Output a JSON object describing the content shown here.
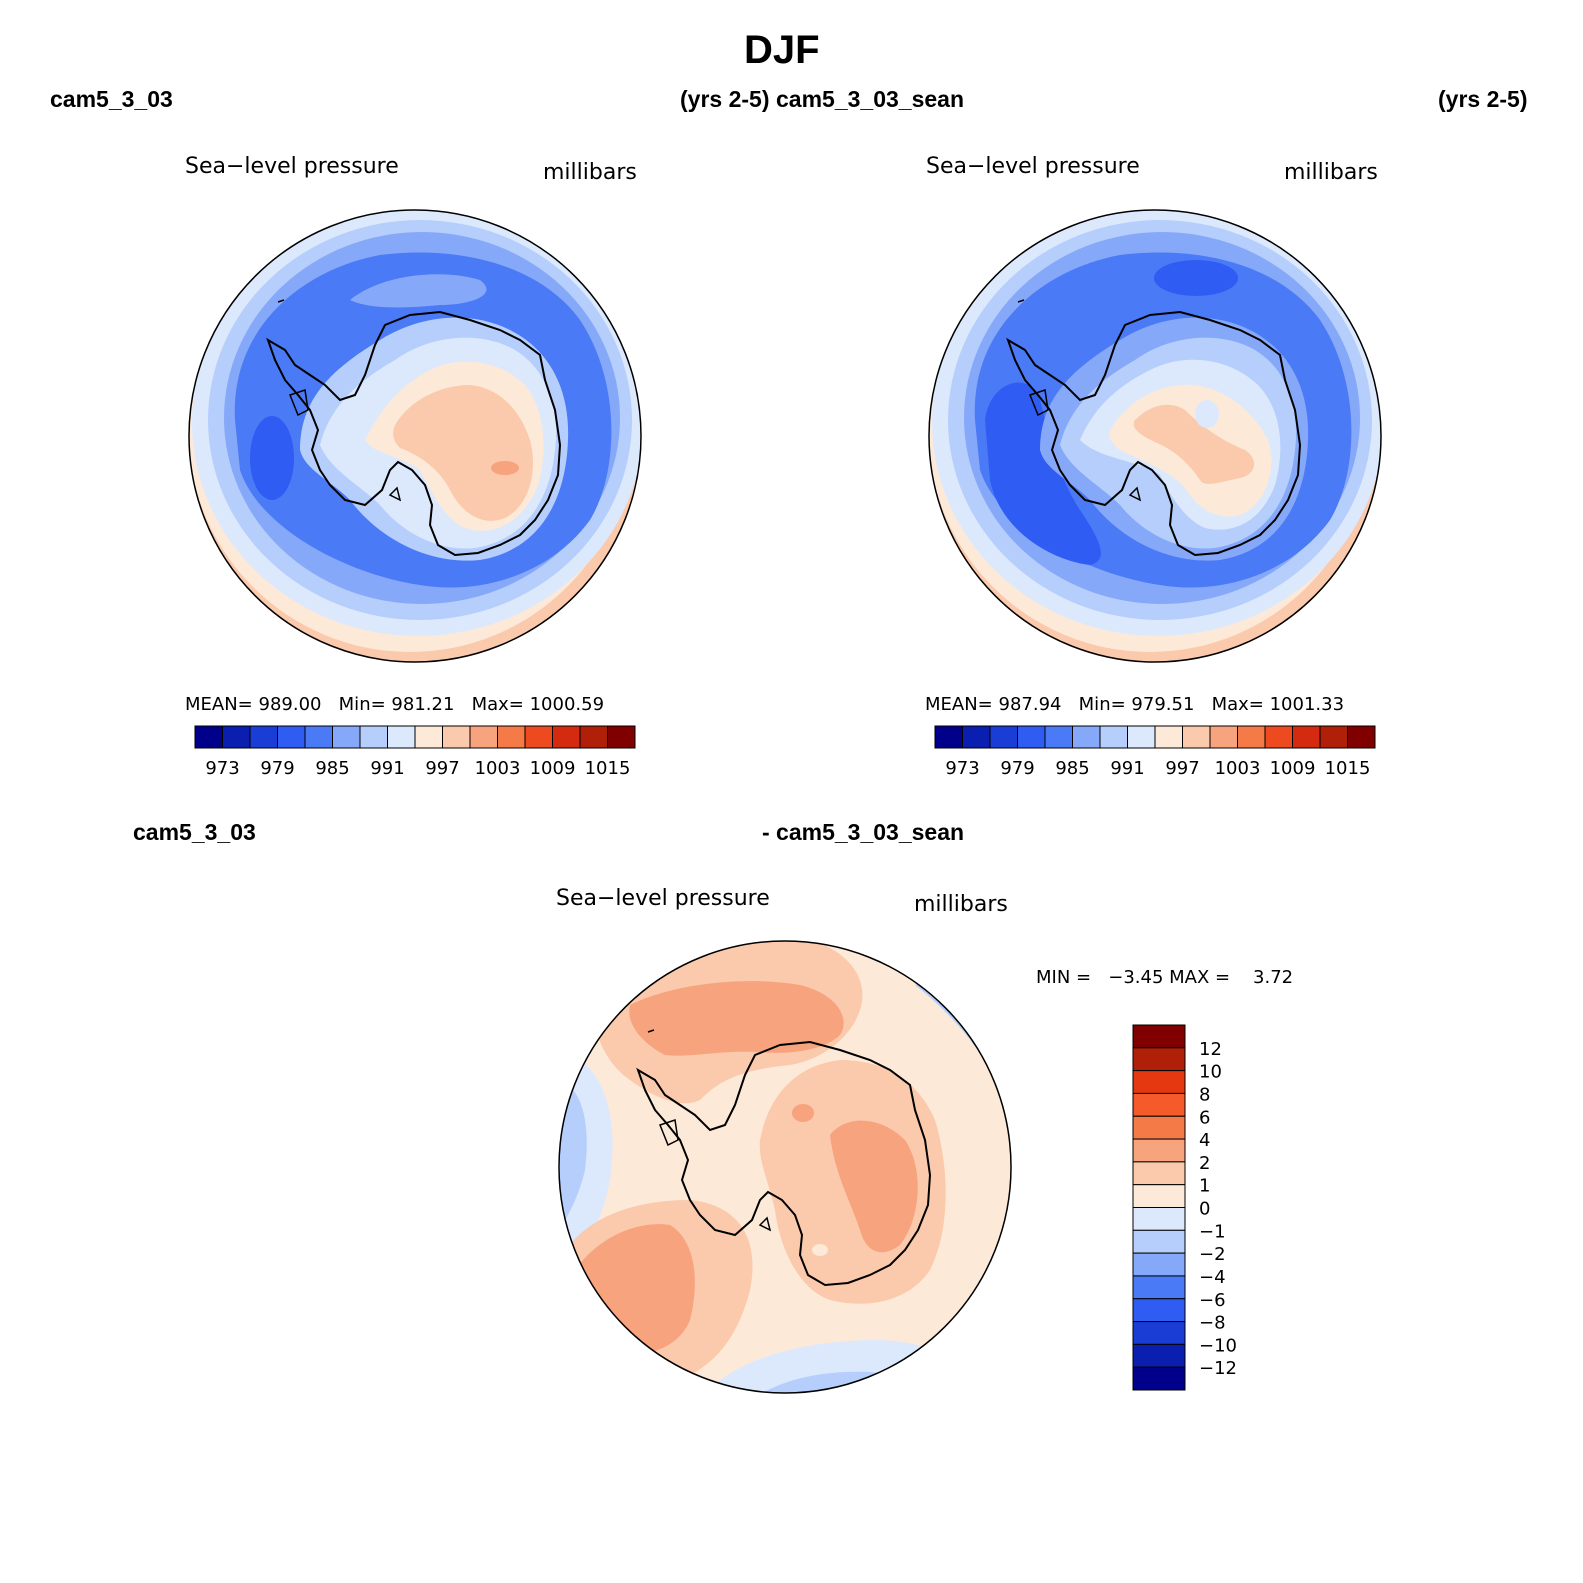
{
  "page": {
    "title": "DJF"
  },
  "panel_left": {
    "case_name": "cam5_3_03",
    "years": "(yrs 2-5)",
    "field": "Sea−level pressure",
    "units": "millibars",
    "stats": {
      "mean_label": "MEAN=",
      "mean": "989.00",
      "min_label": "Min=",
      "min": "981.21",
      "max_label": "Max=",
      "max": "1000.59"
    },
    "colorbar_ticks": [
      "973",
      "979",
      "985",
      "991",
      "997",
      "1003",
      "1009",
      "1015"
    ]
  },
  "panel_right": {
    "case_name": "cam5_3_03_sean",
    "years": "(yrs 2-5)",
    "field": "Sea−level pressure",
    "units": "millibars",
    "stats": {
      "mean_label": "MEAN=",
      "mean": "987.94",
      "min_label": "Min=",
      "min": "979.51",
      "max_label": "Max=",
      "max": "1001.33"
    },
    "colorbar_ticks": [
      "973",
      "979",
      "985",
      "991",
      "997",
      "1003",
      "1009",
      "1015"
    ]
  },
  "panel_diff": {
    "case_a": "cam5_3_03",
    "case_b": "- cam5_3_03_sean",
    "field": "Sea−level pressure",
    "units": "millibars",
    "minmax_text": "MIN =   −3.45 MAX =    3.72",
    "colorbar_ticks": [
      "12",
      "10",
      "8",
      "6",
      "4",
      "2",
      "1",
      "0",
      "−1",
      "−2",
      "−4",
      "−6",
      "−8",
      "−10",
      "−12"
    ]
  },
  "colors": {
    "abs_scale": [
      "#00008b",
      "#0a1eb0",
      "#1a3dd6",
      "#2f5cf2",
      "#4a7af5",
      "#86a8f8",
      "#b5cefb",
      "#dce9fd",
      "#fde9d8",
      "#fbc9ab",
      "#f7a37e",
      "#f47a48",
      "#ee4a1f",
      "#d42b10",
      "#b02008",
      "#800000"
    ],
    "diff_scale": [
      "#800000",
      "#b02008",
      "#e53710",
      "#f45a2a",
      "#f47a48",
      "#f7a37e",
      "#fbc9ab",
      "#fde9d8",
      "#dce9fd",
      "#b5cefb",
      "#86a8f8",
      "#4a7af5",
      "#2f5cf2",
      "#1a3dd6",
      "#0a1eb0",
      "#00008b"
    ],
    "coast": "#000000"
  }
}
